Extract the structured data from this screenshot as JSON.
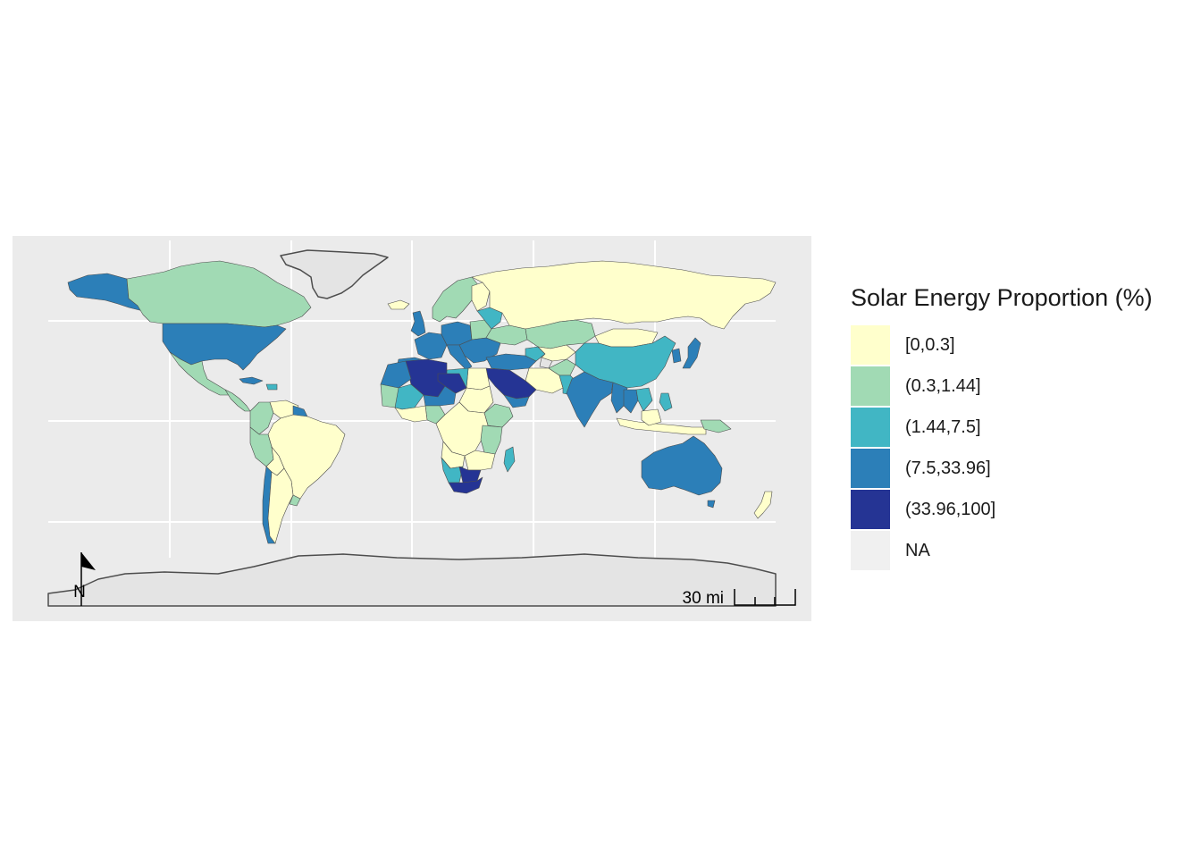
{
  "legend": {
    "title": "Solar Energy Proportion (%)",
    "items": [
      {
        "label": "[0,0.3]",
        "color": "#ffffcc"
      },
      {
        "label": "(0.3,1.44]",
        "color": "#a1dab4"
      },
      {
        "label": "(1.44,7.5]",
        "color": "#41b6c4"
      },
      {
        "label": "(7.5,33.96]",
        "color": "#2c7fb8"
      },
      {
        "label": "(33.96,100]",
        "color": "#253494"
      },
      {
        "label": "NA",
        "color": "#f0f0f0"
      }
    ]
  },
  "map": {
    "panel_background": "#ebebeb",
    "grid_color": "#ffffff",
    "border_color": "#4d4d4d",
    "north_arrow_label": "N",
    "scale_bar_label": "30 mi"
  }
}
